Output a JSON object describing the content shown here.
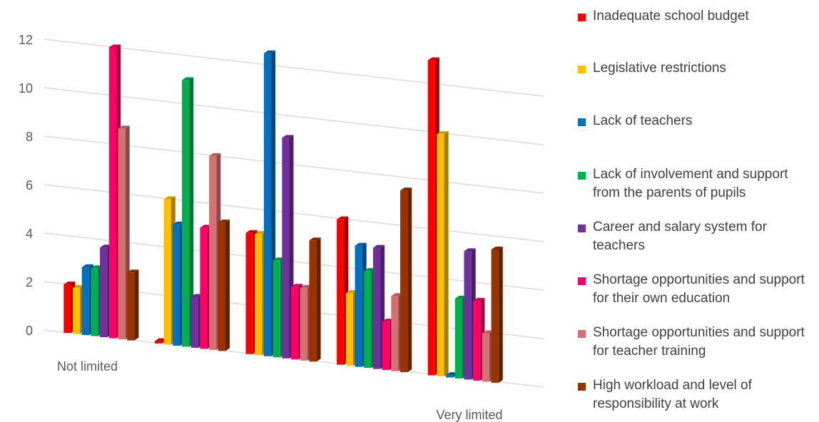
{
  "chart_data": {
    "type": "bar",
    "style": "3d-clustered-column",
    "title": "",
    "xlabel": "",
    "ylabel": "",
    "ylim": [
      0,
      12
    ],
    "y_ticks": [
      "0",
      "2",
      "4",
      "6",
      "8",
      "10",
      "12"
    ],
    "grid": true,
    "legend_position": "right",
    "categories": [
      "Not limited",
      "",
      "",
      "",
      "Very limited"
    ],
    "series": [
      {
        "name": "Inadequate school budget",
        "color": "#FF0000",
        "values": [
          2,
          0.1,
          5,
          6,
          13
        ]
      },
      {
        "name": "Legislative restrictions",
        "color": "#FFC000",
        "values": [
          1.9,
          6,
          5,
          3,
          10
        ]
      },
      {
        "name": "Lack of teachers",
        "color": "#0070C0",
        "values": [
          2.8,
          5,
          12.5,
          5,
          0.1
        ]
      },
      {
        "name": "Lack of involvement and support from the parents of pupils",
        "color": "#00B050",
        "values": [
          2.8,
          11,
          4,
          4,
          3.3
        ]
      },
      {
        "name": "Career and salary system for teachers",
        "color": "#7030A0",
        "values": [
          3.7,
          2.1,
          9.1,
          5,
          5.3
        ]
      },
      {
        "name": "Shortage opportunities and support for their own education",
        "color": "#FF0066",
        "values": [
          12,
          5,
          3,
          2,
          3.3
        ]
      },
      {
        "name": "Shortage opportunities and support for teacher training",
        "color": "#D67070",
        "values": [
          8.7,
          8,
          3,
          3.1,
          2
        ]
      },
      {
        "name": "High workload and level of responsibility at work",
        "color": "#993300",
        "values": [
          2.8,
          5.3,
          5,
          7.5,
          5.5
        ]
      }
    ]
  }
}
